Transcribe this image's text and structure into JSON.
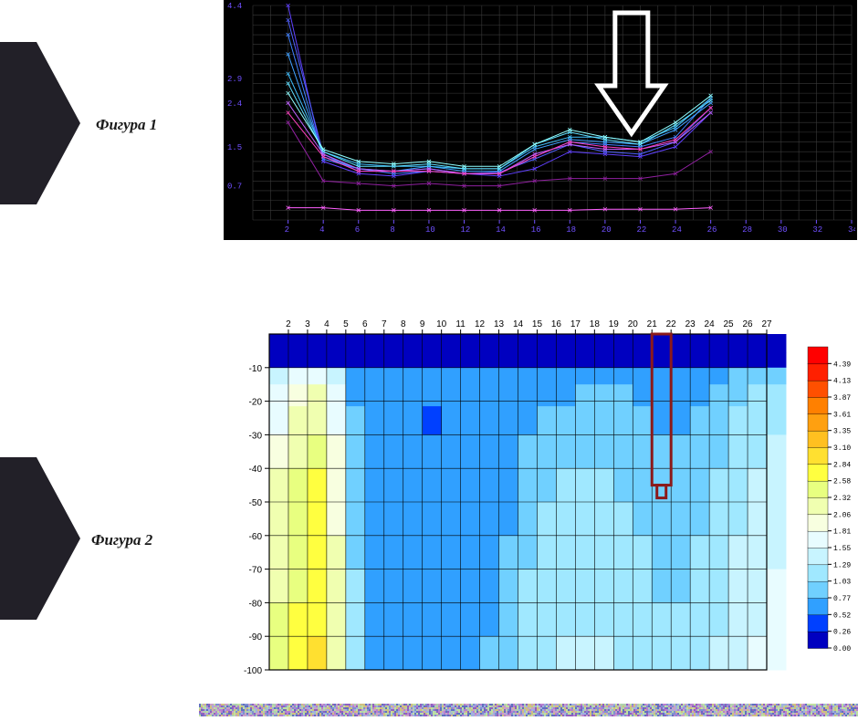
{
  "labels": {
    "figure1": "Фигура 1",
    "figure2": "Фигура 2"
  },
  "decor_arrow": {
    "fill": "#222028",
    "width": 95,
    "height": 190
  },
  "chart1": {
    "type": "line",
    "background_color": "#000000",
    "grid_color": "#3a3a3a",
    "axis_label_color": "#7050ff",
    "xlim": [
      0,
      34
    ],
    "xtick_step": 2,
    "xtick_labels": [
      2,
      4,
      6,
      8,
      10,
      12,
      14,
      16,
      18,
      20,
      22,
      24,
      26,
      28,
      30,
      32,
      34
    ],
    "ytick_labels": [
      0.7,
      1.5,
      2.4,
      2.9,
      4.4
    ],
    "ylim": [
      0,
      4.4
    ],
    "label_fontsize": 9,
    "annotation_arrow": {
      "points_to_x": 21.5,
      "color": "#ffffff",
      "stroke_width": 5
    },
    "series": [
      {
        "color": "#6040ff",
        "line_width": 1,
        "values_at_x2_to_x26": [
          4.4,
          1.2,
          0.95,
          0.9,
          1.0,
          0.95,
          0.9,
          1.05,
          1.4,
          1.35,
          1.3,
          1.5,
          2.2
        ]
      },
      {
        "color": "#5060ff",
        "line_width": 1,
        "values_at_x2_to_x26": [
          4.1,
          1.35,
          1.0,
          1.0,
          1.05,
          0.95,
          0.98,
          1.25,
          1.55,
          1.4,
          1.35,
          1.6,
          2.3
        ]
      },
      {
        "color": "#4080ff",
        "line_width": 1,
        "values_at_x2_to_x26": [
          3.8,
          1.25,
          1.05,
          0.95,
          1.0,
          0.95,
          0.95,
          1.3,
          1.6,
          1.55,
          1.5,
          1.7,
          2.5
        ]
      },
      {
        "color": "#40a0ff",
        "line_width": 1,
        "values_at_x2_to_x26": [
          3.4,
          1.3,
          1.05,
          1.0,
          1.1,
          1.0,
          1.0,
          1.45,
          1.65,
          1.6,
          1.55,
          1.85,
          2.4
        ]
      },
      {
        "color": "#40c0ff",
        "line_width": 1,
        "values_at_x2_to_x26": [
          3.0,
          1.4,
          1.15,
          1.1,
          1.1,
          1.05,
          1.05,
          1.5,
          1.7,
          1.7,
          1.6,
          1.9,
          2.5
        ]
      },
      {
        "color": "#60e0ff",
        "line_width": 1,
        "values_at_x2_to_x26": [
          2.8,
          1.4,
          1.1,
          1.1,
          1.15,
          1.05,
          1.05,
          1.55,
          1.8,
          1.65,
          1.55,
          1.95,
          2.45
        ]
      },
      {
        "color": "#90ffff",
        "line_width": 1,
        "values_at_x2_to_x26": [
          2.6,
          1.45,
          1.2,
          1.15,
          1.2,
          1.1,
          1.1,
          1.55,
          1.85,
          1.7,
          1.6,
          2.0,
          2.55
        ]
      },
      {
        "color": "#c060ff",
        "line_width": 1,
        "values_at_x2_to_x26": [
          2.4,
          1.35,
          1.05,
          1.0,
          1.05,
          0.95,
          0.95,
          1.35,
          1.55,
          1.45,
          1.45,
          1.6,
          2.2
        ]
      },
      {
        "color": "#ff40c0",
        "line_width": 1,
        "values_at_x2_to_x26": [
          2.2,
          1.3,
          1.0,
          1.0,
          1.0,
          0.95,
          0.95,
          1.3,
          1.6,
          1.5,
          1.45,
          1.65,
          2.3
        ]
      },
      {
        "color": "#ff60ff",
        "line_width": 1,
        "values_at_x2_to_x26": [
          0.25,
          0.25,
          0.2,
          0.2,
          0.2,
          0.2,
          0.2,
          0.2,
          0.2,
          0.22,
          0.22,
          0.22,
          0.25
        ]
      },
      {
        "color": "#9020a0",
        "line_width": 1,
        "values_at_x2_to_x26": [
          2.0,
          0.8,
          0.75,
          0.7,
          0.75,
          0.7,
          0.7,
          0.8,
          0.85,
          0.85,
          0.85,
          0.95,
          1.4
        ]
      }
    ]
  },
  "chart2": {
    "type": "heatmap",
    "background_color": "#ffffff",
    "grid_color": "#000000",
    "axis_label_color": "#000000",
    "label_fontsize": 10,
    "xlim": [
      1,
      27
    ],
    "xtick_labels": [
      2,
      3,
      4,
      5,
      6,
      7,
      8,
      9,
      10,
      11,
      12,
      13,
      14,
      15,
      16,
      17,
      18,
      19,
      20,
      21,
      22,
      23,
      24,
      25,
      26,
      27
    ],
    "ylim": [
      -100,
      0
    ],
    "ytick_labels": [
      -10,
      -20,
      -30,
      -40,
      -50,
      -60,
      -70,
      -80,
      -90,
      -100
    ],
    "colorbar": {
      "levels": [
        0.0,
        0.26,
        0.52,
        0.77,
        1.03,
        1.29,
        1.55,
        1.81,
        2.06,
        2.32,
        2.58,
        2.84,
        3.1,
        3.35,
        3.61,
        3.87,
        4.13,
        4.39
      ],
      "colors": [
        "#0000c0",
        "#0040ff",
        "#30a0ff",
        "#70d0ff",
        "#a0e8ff",
        "#c8f4ff",
        "#e8fcff",
        "#f8ffe0",
        "#f0ffb0",
        "#e8ff80",
        "#ffff40",
        "#ffe030",
        "#ffc020",
        "#ffa010",
        "#ff8000",
        "#ff5000",
        "#ff2000",
        "#ff0000"
      ]
    },
    "annotation_box": {
      "x_range": [
        21,
        22
      ],
      "y_range": [
        -45,
        0
      ],
      "color": "#8b1a1a",
      "stroke_width": 3
    },
    "field_sample_rows": [
      {
        "y": -3,
        "vals": [
          0.0,
          0.0,
          0.0,
          0.0,
          0.0,
          0.0,
          0.0,
          0.0,
          0.0,
          0.0,
          0.0,
          0.0,
          0.0,
          0.0,
          0.0,
          0.0,
          0.0,
          0.0,
          0.0,
          0.0,
          0.0,
          0.0,
          0.0,
          0.0,
          0.0,
          0.0,
          0.0
        ]
      },
      {
        "y": -8,
        "vals": [
          0.0,
          0.0,
          0.0,
          0.0,
          0.0,
          0.0,
          0.0,
          0.0,
          0.0,
          0.0,
          0.0,
          0.0,
          0.0,
          0.0,
          0.0,
          0.0,
          0.0,
          0.0,
          0.0,
          0.0,
          0.0,
          0.0,
          0.0,
          0.0,
          0.0,
          0.0,
          0.0
        ]
      },
      {
        "y": -12,
        "vals": [
          1.4,
          1.6,
          1.8,
          1.5,
          0.7,
          0.55,
          0.55,
          0.55,
          0.55,
          0.55,
          0.55,
          0.55,
          0.55,
          0.6,
          0.6,
          0.65,
          0.7,
          0.7,
          0.7,
          0.65,
          0.6,
          0.6,
          0.6,
          0.7,
          0.8,
          0.9,
          0.95
        ]
      },
      {
        "y": -18,
        "vals": [
          1.6,
          1.9,
          2.1,
          1.7,
          0.75,
          0.55,
          0.55,
          0.6,
          0.6,
          0.55,
          0.55,
          0.55,
          0.6,
          0.65,
          0.7,
          0.75,
          0.8,
          0.8,
          0.8,
          0.75,
          0.65,
          0.65,
          0.7,
          0.8,
          0.95,
          1.05,
          1.1
        ]
      },
      {
        "y": -25,
        "vals": [
          1.8,
          2.1,
          2.3,
          1.8,
          0.8,
          0.55,
          0.55,
          0.6,
          0.5,
          0.55,
          0.55,
          0.55,
          0.6,
          0.7,
          0.8,
          0.85,
          0.9,
          0.85,
          0.85,
          0.8,
          0.7,
          0.7,
          0.8,
          0.9,
          1.05,
          1.15,
          1.25
        ]
      },
      {
        "y": -35,
        "vals": [
          2.0,
          2.3,
          2.5,
          1.9,
          0.85,
          0.55,
          0.55,
          0.6,
          0.55,
          0.55,
          0.55,
          0.6,
          0.65,
          0.8,
          0.9,
          0.95,
          1.0,
          0.95,
          0.95,
          0.9,
          0.8,
          0.8,
          0.9,
          1.0,
          1.15,
          1.25,
          1.35
        ]
      },
      {
        "y": -45,
        "vals": [
          2.1,
          2.4,
          2.6,
          2.0,
          0.9,
          0.55,
          0.55,
          0.6,
          0.55,
          0.55,
          0.55,
          0.6,
          0.7,
          0.9,
          1.0,
          1.05,
          1.1,
          1.05,
          1.0,
          0.95,
          0.85,
          0.85,
          0.95,
          1.05,
          1.2,
          1.3,
          1.4
        ]
      },
      {
        "y": -55,
        "vals": [
          2.2,
          2.45,
          2.65,
          2.05,
          0.95,
          0.55,
          0.55,
          0.6,
          0.55,
          0.55,
          0.55,
          0.65,
          0.75,
          0.95,
          1.05,
          1.1,
          1.1,
          1.1,
          1.05,
          1.0,
          0.9,
          0.9,
          1.0,
          1.1,
          1.25,
          1.35,
          1.45
        ]
      },
      {
        "y": -65,
        "vals": [
          2.25,
          2.5,
          2.7,
          2.1,
          1.0,
          0.55,
          0.55,
          0.6,
          0.55,
          0.55,
          0.6,
          0.7,
          0.8,
          1.0,
          1.1,
          1.15,
          1.15,
          1.15,
          1.1,
          1.05,
          0.95,
          0.95,
          1.05,
          1.15,
          1.3,
          1.4,
          1.5
        ]
      },
      {
        "y": -75,
        "vals": [
          2.3,
          2.55,
          2.75,
          2.15,
          1.05,
          0.55,
          0.55,
          0.6,
          0.55,
          0.55,
          0.6,
          0.7,
          0.85,
          1.05,
          1.15,
          1.2,
          1.2,
          1.2,
          1.15,
          1.1,
          1.0,
          1.0,
          1.1,
          1.2,
          1.35,
          1.45,
          1.55
        ]
      },
      {
        "y": -85,
        "vals": [
          2.35,
          2.6,
          2.8,
          2.2,
          1.1,
          0.55,
          0.55,
          0.6,
          0.55,
          0.6,
          0.65,
          0.75,
          0.9,
          1.1,
          1.2,
          1.25,
          1.25,
          1.25,
          1.2,
          1.15,
          1.05,
          1.05,
          1.15,
          1.25,
          1.4,
          1.5,
          1.6
        ]
      },
      {
        "y": -95,
        "vals": [
          2.4,
          2.65,
          2.85,
          2.25,
          1.15,
          0.6,
          0.6,
          0.6,
          0.6,
          0.6,
          0.65,
          0.8,
          0.95,
          1.15,
          1.25,
          1.3,
          1.3,
          1.3,
          1.25,
          1.2,
          1.1,
          1.1,
          1.2,
          1.3,
          1.45,
          1.55,
          1.65
        ]
      }
    ]
  },
  "noise_strip": {
    "colors": [
      "#6070c0",
      "#8090d0",
      "#a0b0e0",
      "#b0d0b0",
      "#c0e0a0",
      "#d0c080",
      "#c8a0c8",
      "#b880d0",
      "#9060c0"
    ]
  }
}
